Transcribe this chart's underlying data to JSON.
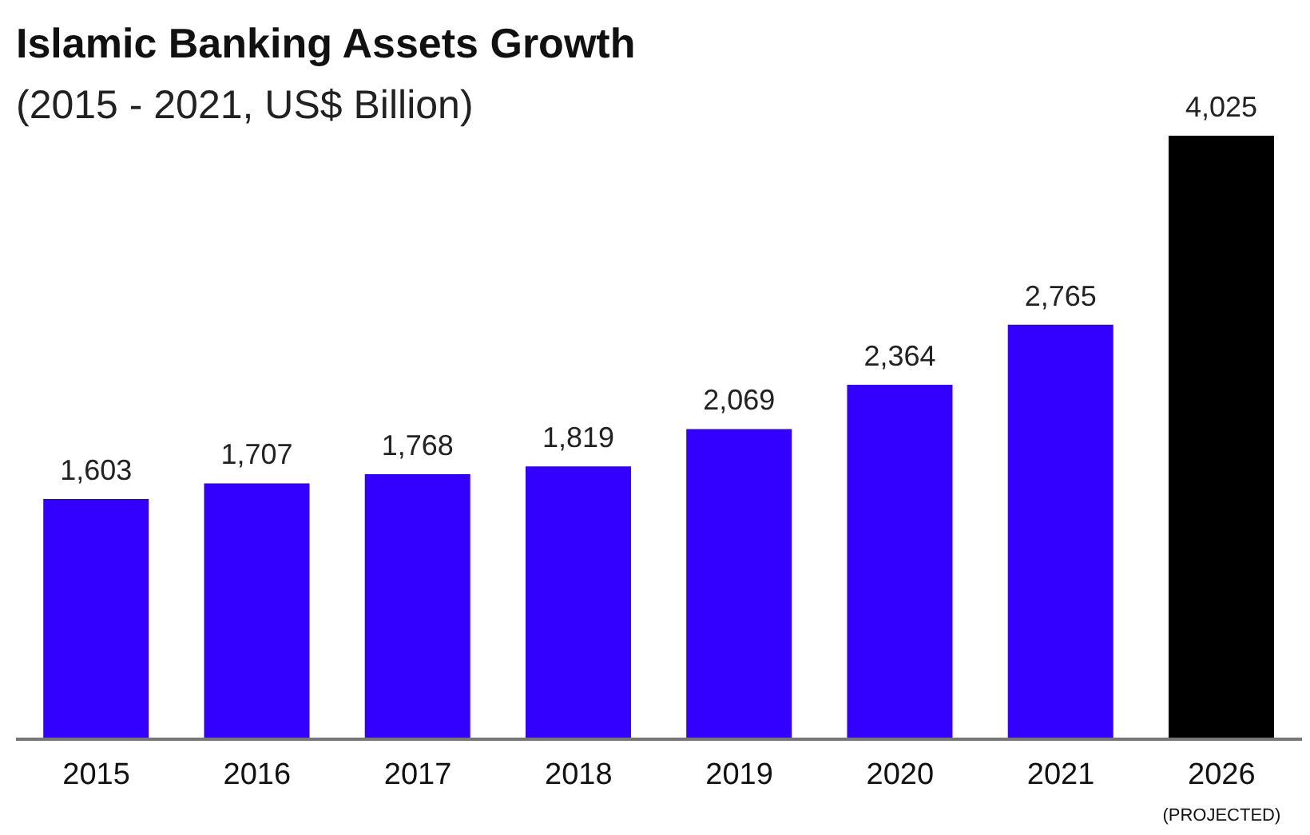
{
  "chart_data": {
    "type": "bar",
    "title": "Islamic Banking Assets Growth",
    "subtitle": "(2015 - 2021, US$ Billion)",
    "categories": [
      "2015",
      "2016",
      "2017",
      "2018",
      "2019",
      "2020",
      "2021",
      "2026$_{(PROJECTED)}$"
    ],
    "values": [
      1603,
      1707,
      1768,
      1819,
      2069,
      2364,
      2765,
      4025
    ],
    "value_labels": [
      "1,603",
      "1,707",
      "1,768",
      "1,819",
      "2,069",
      "2,364",
      "2,765",
      "4,025"
    ],
    "colors": [
      "#3300ff",
      "#3300ff",
      "#3300ff",
      "#3300ff",
      "#3300ff",
      "#3300ff",
      "#3300ff",
      "#000000"
    ],
    "tick_labels": "x"
  }
}
